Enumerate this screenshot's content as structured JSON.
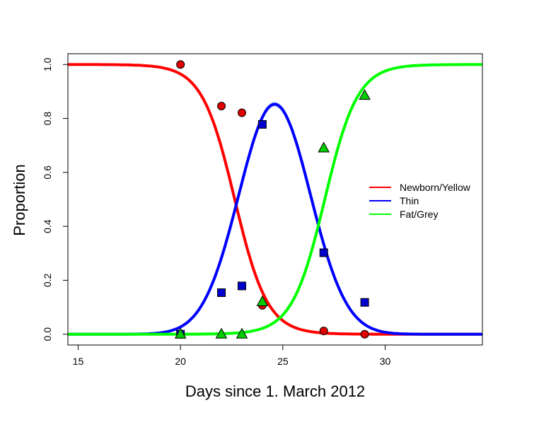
{
  "chart_data": {
    "type": "scatter",
    "title": "",
    "xlabel": "Days since 1. March 2012",
    "ylabel": "Proportion",
    "xlim": [
      14.5,
      34.75
    ],
    "ylim": [
      -0.04,
      1.04
    ],
    "xticks": [
      {
        "value": 15,
        "label": "15"
      },
      {
        "value": 20,
        "label": "20"
      },
      {
        "value": 25,
        "label": "25"
      },
      {
        "value": 30,
        "label": "30"
      }
    ],
    "yticks": [
      {
        "value": 0.0,
        "label": "0.0"
      },
      {
        "value": 0.2,
        "label": "0.2"
      },
      {
        "value": 0.4,
        "label": "0.4"
      },
      {
        "value": 0.6,
        "label": "0.6"
      },
      {
        "value": 0.8,
        "label": "0.8"
      },
      {
        "value": 1.0,
        "label": "1.0"
      }
    ],
    "legend_position": "right",
    "series": [
      {
        "name": "Newborn/Yellow",
        "color": "#ff0000",
        "marker": "circle",
        "marker_fill": "#e00000",
        "points": [
          {
            "x": 20,
            "y": 1.0
          },
          {
            "x": 22,
            "y": 0.846
          },
          {
            "x": 23,
            "y": 0.821
          },
          {
            "x": 24,
            "y": 0.107
          },
          {
            "x": 27,
            "y": 0.012
          },
          {
            "x": 29,
            "y": 0.0
          }
        ]
      },
      {
        "name": "Thin",
        "color": "#0000ff",
        "marker": "square",
        "marker_fill": "#0000cc",
        "points": [
          {
            "x": 20,
            "y": 0.0
          },
          {
            "x": 22,
            "y": 0.154
          },
          {
            "x": 23,
            "y": 0.179
          },
          {
            "x": 24,
            "y": 0.778
          },
          {
            "x": 27,
            "y": 0.302
          },
          {
            "x": 29,
            "y": 0.118
          }
        ]
      },
      {
        "name": "Fat/Grey",
        "color": "#00ff00",
        "marker": "triangle",
        "marker_fill": "#00cc00",
        "points": [
          {
            "x": 20,
            "y": 0.0
          },
          {
            "x": 22,
            "y": 0.0
          },
          {
            "x": 23,
            "y": 0.0
          },
          {
            "x": 24,
            "y": 0.12
          },
          {
            "x": 27,
            "y": 0.69
          },
          {
            "x": 29,
            "y": 0.885
          }
        ]
      }
    ]
  }
}
